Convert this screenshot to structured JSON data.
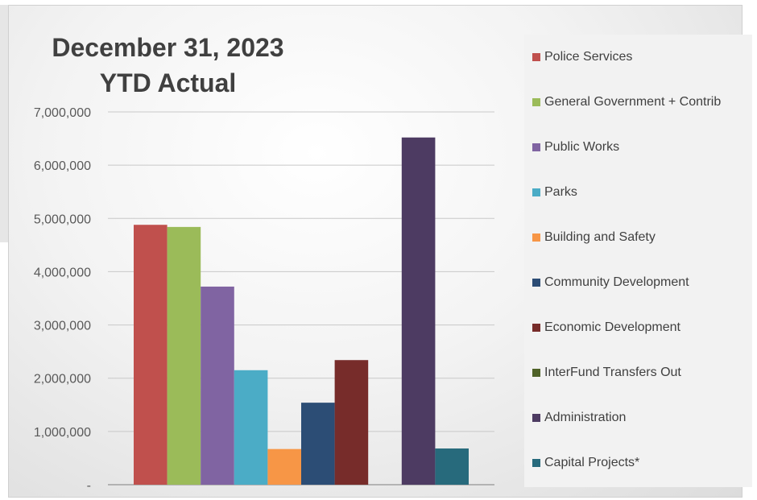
{
  "chart_data": {
    "type": "bar",
    "title_line1": "December 31, 2023",
    "title_line2": "YTD Actual",
    "xlabel": "",
    "ylabel": "",
    "ylim": [
      0,
      7000000
    ],
    "yticks": [
      0,
      1000000,
      2000000,
      3000000,
      4000000,
      5000000,
      6000000,
      7000000
    ],
    "ytick_labels": [
      "-",
      "1,000,000",
      "2,000,000",
      "3,000,000",
      "4,000,000",
      "5,000,000",
      "6,000,000",
      "7,000,000"
    ],
    "grid": true,
    "legend_position": "right",
    "series": [
      {
        "name": "Police Services",
        "value": 4880000,
        "color": "#c0504d"
      },
      {
        "name": "General Government + Contrib",
        "value": 4840000,
        "color": "#9bbb59"
      },
      {
        "name": "Public Works",
        "value": 3720000,
        "color": "#8064a2"
      },
      {
        "name": "Parks",
        "value": 2150000,
        "color": "#4bacc6"
      },
      {
        "name": "Building and Safety",
        "value": 670000,
        "color": "#f79646"
      },
      {
        "name": "Community Development",
        "value": 1540000,
        "color": "#2c4d75"
      },
      {
        "name": "Economic Development",
        "value": 2340000,
        "color": "#772c2a"
      },
      {
        "name": "InterFund Transfers Out",
        "value": 0,
        "color": "#4f6228"
      },
      {
        "name": "Administration",
        "value": 6520000,
        "color": "#4d3b62"
      },
      {
        "name": "Capital Projects*",
        "value": 680000,
        "color": "#276a7c"
      }
    ]
  }
}
